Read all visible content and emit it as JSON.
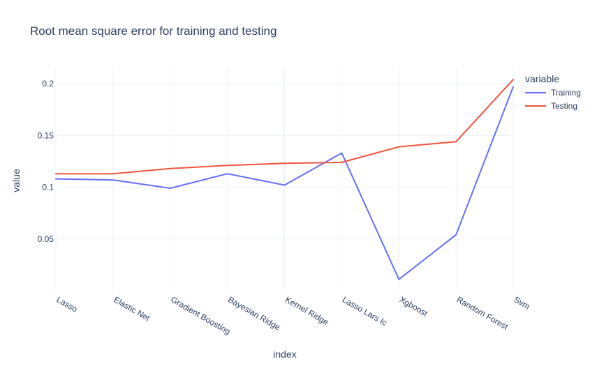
{
  "chart_data": {
    "type": "line",
    "title": "Root mean square error for training and testing",
    "xlabel": "index",
    "ylabel": "value",
    "categories": [
      "Lasso",
      "Elastic Net",
      "Gradient Boosting",
      "Bayesian Ridge",
      "Kernel Ridge",
      "Lasso Lars Ic",
      "Xgboost",
      "Random Forest",
      "Svm"
    ],
    "ylim": [
      0.0,
      0.215
    ],
    "yticks": [
      {
        "value": 0.05,
        "label": "0.05"
      },
      {
        "value": 0.1,
        "label": "0.1"
      },
      {
        "value": 0.15,
        "label": "0.15"
      },
      {
        "value": 0.2,
        "label": "0.2"
      }
    ],
    "grid": true,
    "legend": {
      "title": "variable",
      "position": "top-right"
    },
    "series": [
      {
        "name": "Training",
        "color": "#636efa",
        "values": [
          0.108,
          0.107,
          0.099,
          0.113,
          0.102,
          0.133,
          0.011,
          0.054,
          0.197
        ]
      },
      {
        "name": "Testing",
        "color": "#ef553b",
        "values": [
          0.113,
          0.113,
          0.118,
          0.121,
          0.123,
          0.124,
          0.139,
          0.144,
          0.204
        ]
      }
    ]
  }
}
